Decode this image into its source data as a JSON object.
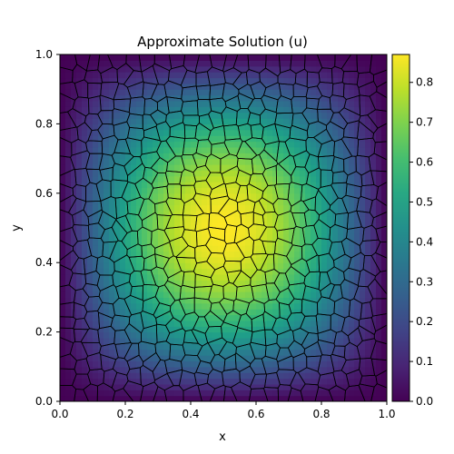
{
  "chart_data": {
    "type": "heatmap",
    "title": "Approximate Solution (u)",
    "xlabel": "x",
    "ylabel": "y",
    "xlim": [
      0.0,
      1.0
    ],
    "ylim": [
      0.0,
      1.0
    ],
    "x_ticks": [
      "0.0",
      "0.2",
      "0.4",
      "0.6",
      "0.8",
      "1.0"
    ],
    "y_ticks": [
      "0.0",
      "0.2",
      "0.4",
      "0.6",
      "0.8",
      "1.0"
    ],
    "colorbar": {
      "min": 0.0,
      "max": 0.87,
      "ticks": [
        "0.0",
        "0.1",
        "0.2",
        "0.3",
        "0.4",
        "0.5",
        "0.6",
        "0.7",
        "0.8"
      ],
      "colormap": "viridis"
    },
    "field": {
      "description": "smooth bump peaking near center",
      "peak": [
        0.5,
        0.5
      ],
      "peak_value": 0.87
    },
    "mesh": "polygonal voronoi-like cells with black edges",
    "grid": false
  }
}
